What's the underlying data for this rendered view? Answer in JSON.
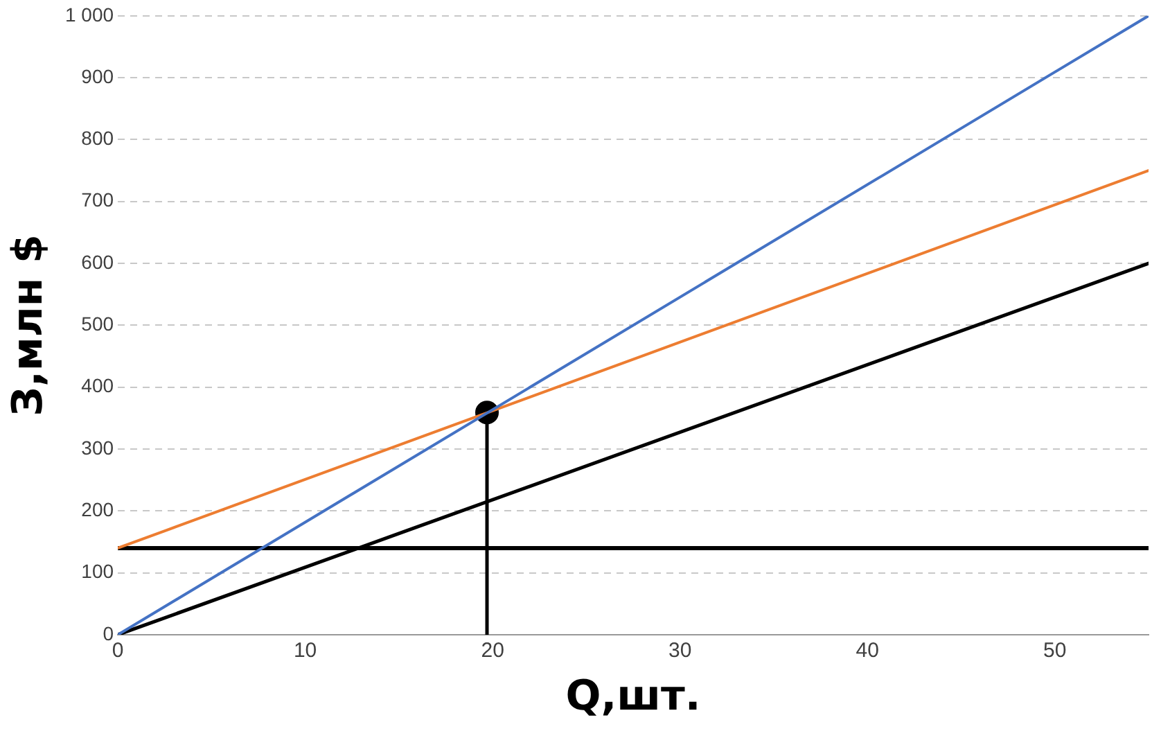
{
  "chart_data": {
    "type": "line",
    "xlabel": "Q,шт.",
    "ylabel": "З,млн $",
    "xlim": [
      0,
      55
    ],
    "xticks": [
      0,
      10,
      20,
      30,
      40,
      50
    ],
    "ylim": [
      0,
      1000
    ],
    "yticks": [
      0,
      100,
      200,
      300,
      400,
      500,
      600,
      700,
      800,
      900,
      {
        "value": 1000,
        "label": "1 000"
      }
    ],
    "grid": "y",
    "legend": false,
    "marker": "none",
    "series": [
      {
        "color": "#4472c4",
        "x": [
          0,
          55
        ],
        "values": [
          0,
          1000
        ]
      },
      {
        "color": "#ed7d31",
        "x": [
          0,
          55
        ],
        "values": [
          140,
          750
        ]
      },
      {
        "color": "#000000",
        "x": [
          0,
          55
        ],
        "values": [
          0,
          600
        ]
      },
      {
        "color": "#000000",
        "x": [
          19.7,
          19.7
        ],
        "values": [
          0,
          359
        ]
      },
      {
        "type": "scatter",
        "marker": "circle",
        "color": "#000000",
        "x": [
          19.7
        ],
        "values": [
          359
        ]
      }
    ],
    "ref_lines": [
      {
        "axis": "y",
        "value": 140,
        "color": "#000000"
      }
    ]
  }
}
